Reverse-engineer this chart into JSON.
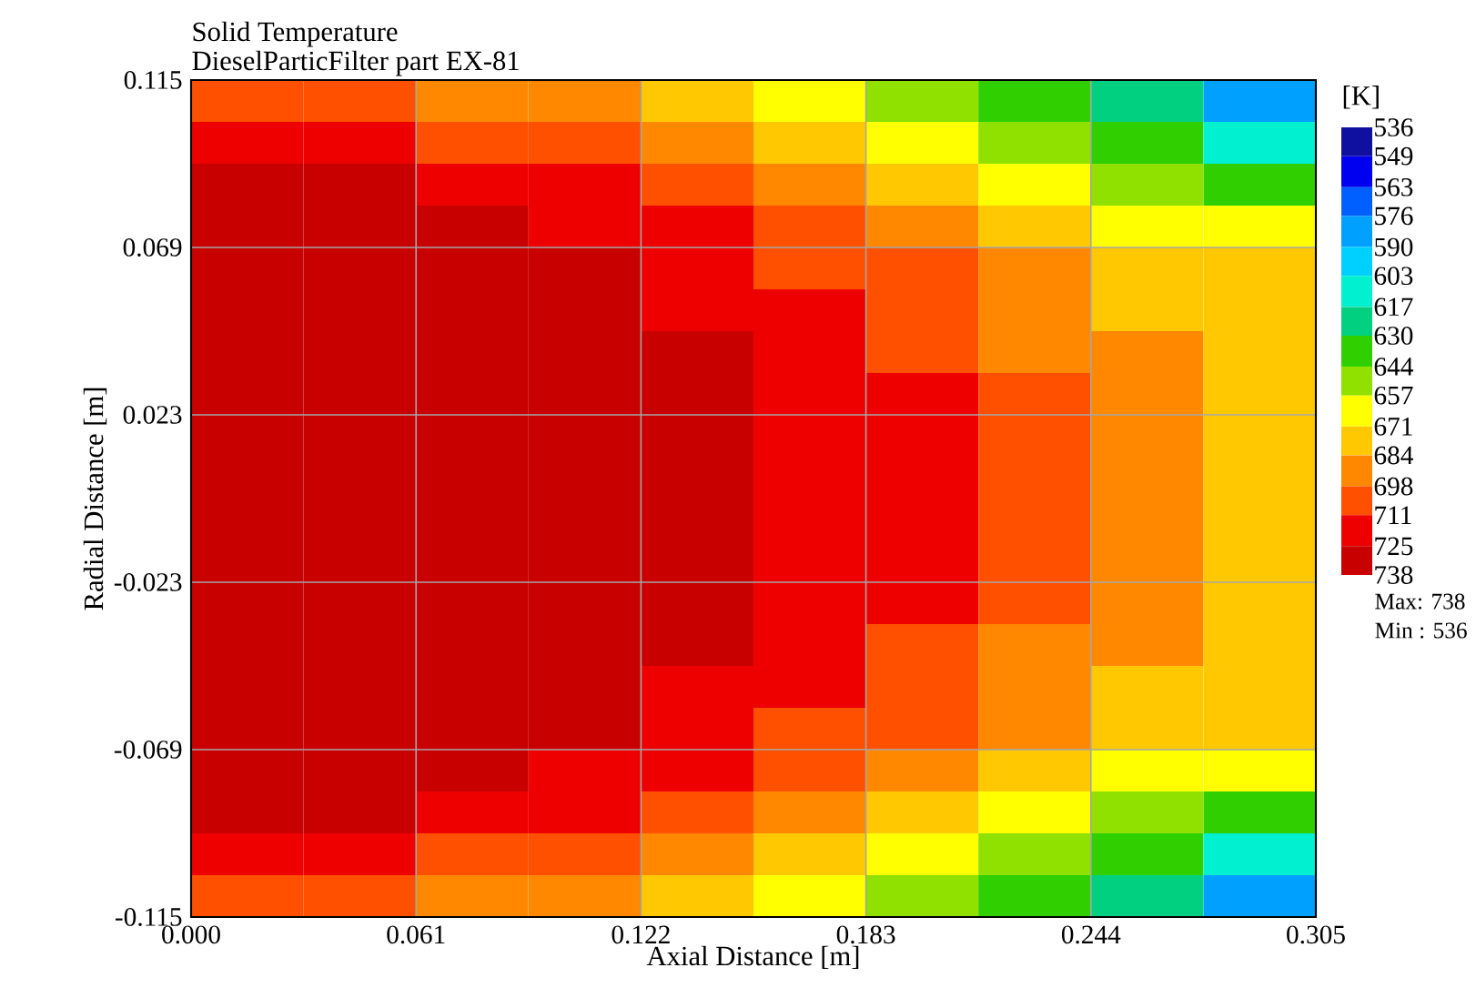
{
  "chart_data": {
    "type": "heatmap",
    "title": "Solid Temperature",
    "subtitle": "DieselParticFilter part EX-81",
    "xlabel": "Axial Distance [m]",
    "ylabel": "Radial Distance [m]",
    "clabel": "[K]",
    "annotations": [
      "Max: 738",
      "Min : 536"
    ],
    "xlim": [
      0,
      0.305
    ],
    "ylim": [
      -0.115,
      0.115
    ],
    "xticks": [
      {
        "value": 0,
        "label": "0.000"
      },
      0.061,
      0.122,
      0.183,
      0.244,
      0.305
    ],
    "yticks": [
      -0.115,
      -0.069,
      -0.023,
      0.023,
      0.069,
      0.115
    ],
    "grid": true,
    "clim": [
      536,
      738
    ],
    "cticks": [
      536,
      549,
      563,
      576,
      590,
      603,
      617,
      630,
      644,
      657,
      671,
      684,
      698,
      711,
      725,
      738
    ],
    "cells": [
      [
        704,
        704,
        691,
        691,
        677,
        664,
        650,
        637,
        623,
        583
      ],
      [
        718,
        718,
        704,
        704,
        691,
        677,
        664,
        650,
        637,
        610
      ],
      [
        731,
        731,
        718,
        718,
        704,
        691,
        677,
        664,
        650,
        637
      ],
      [
        731,
        731,
        731,
        718,
        718,
        704,
        691,
        677,
        664,
        664
      ],
      [
        731,
        731,
        731,
        731,
        718,
        704,
        704,
        691,
        677,
        677
      ],
      [
        731,
        731,
        731,
        731,
        718,
        718,
        704,
        691,
        677,
        677
      ],
      [
        731,
        731,
        731,
        731,
        731,
        718,
        704,
        691,
        691,
        677
      ],
      [
        731,
        731,
        731,
        731,
        731,
        718,
        718,
        704,
        691,
        677
      ],
      [
        731,
        731,
        731,
        731,
        731,
        718,
        718,
        704,
        691,
        677
      ],
      [
        731,
        731,
        731,
        731,
        731,
        718,
        718,
        704,
        691,
        677
      ],
      [
        731,
        731,
        731,
        731,
        731,
        718,
        718,
        704,
        691,
        677
      ],
      [
        731,
        731,
        731,
        731,
        731,
        718,
        718,
        704,
        691,
        677
      ],
      [
        731,
        731,
        731,
        731,
        731,
        718,
        718,
        704,
        691,
        677
      ],
      [
        731,
        731,
        731,
        731,
        731,
        718,
        704,
        691,
        691,
        677
      ],
      [
        731,
        731,
        731,
        731,
        718,
        718,
        704,
        691,
        677,
        677
      ],
      [
        731,
        731,
        731,
        731,
        718,
        704,
        704,
        691,
        677,
        677
      ],
      [
        731,
        731,
        731,
        718,
        718,
        704,
        691,
        677,
        664,
        664
      ],
      [
        731,
        731,
        718,
        718,
        704,
        691,
        677,
        664,
        650,
        637
      ],
      [
        718,
        718,
        704,
        704,
        691,
        677,
        664,
        650,
        637,
        610
      ],
      [
        704,
        704,
        691,
        691,
        677,
        664,
        650,
        637,
        623,
        583
      ]
    ]
  }
}
